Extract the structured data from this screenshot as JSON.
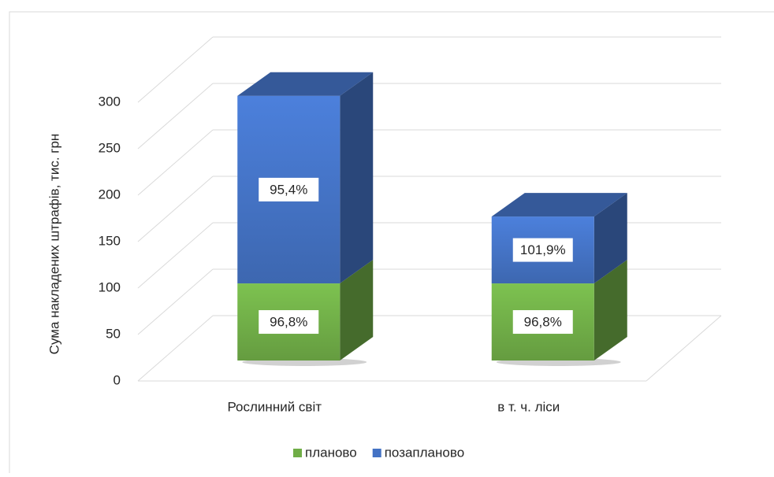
{
  "chart_data": {
    "type": "bar3d_stacked",
    "y_label": "Сума накладених штрафів, тис. грн",
    "categories": [
      "Рослинний світ",
      "в т. ч. ліси"
    ],
    "series": [
      {
        "name": "планово",
        "color": "#70ad47",
        "values": [
          83,
          83
        ],
        "annotations": [
          "96,8%",
          "96,8%"
        ]
      },
      {
        "name": "позапланово",
        "color": "#4472c4",
        "values": [
          202,
          72
        ],
        "annotations": [
          "95,4%",
          "101,9%"
        ]
      }
    ],
    "ylim": [
      0,
      300
    ],
    "yticks": [
      0,
      50,
      100,
      150,
      200,
      250,
      300
    ],
    "grid": true,
    "legend": "bottom"
  }
}
